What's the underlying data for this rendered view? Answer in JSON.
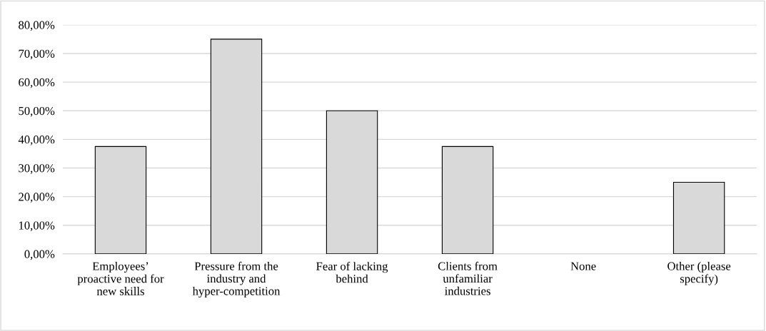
{
  "chart_data": {
    "type": "bar",
    "categories": [
      "Employees’\nproactive need for\nnew skills",
      "Pressure from the\nindustry and\nhyper-competition",
      "Fear of lacking\nbehind",
      "Clients from\nunfamiliar\nindustries",
      "None",
      "Other (please\nspecify)"
    ],
    "values": [
      37.5,
      75,
      50,
      37.5,
      0,
      25
    ],
    "color": "#d9d9d9",
    "ylim": [
      0,
      80
    ],
    "yticks": [
      {
        "value": 0,
        "label": "0,00%"
      },
      {
        "value": 10,
        "label": "10,00%"
      },
      {
        "value": 20,
        "label": "20,00%"
      },
      {
        "value": 30,
        "label": "30,00%"
      },
      {
        "value": 40,
        "label": "40,00%"
      },
      {
        "value": 50,
        "label": "50,00%"
      },
      {
        "value": 60,
        "label": "60,00%"
      },
      {
        "value": 70,
        "label": "70,00%"
      },
      {
        "value": 80,
        "label": "80,00%"
      }
    ],
    "grid": "y"
  }
}
